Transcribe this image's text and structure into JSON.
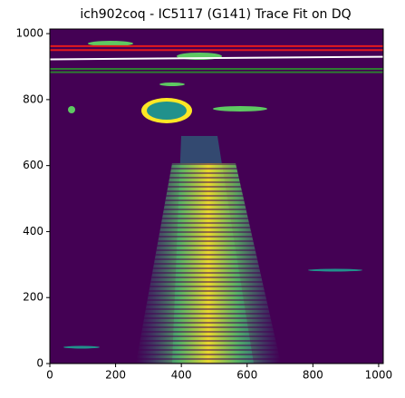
{
  "chart_data": {
    "type": "image",
    "title": "ich902coq - IC5117 (G141) Trace Fit on DQ",
    "xlim": [
      0,
      1014
    ],
    "ylim": [
      0,
      1014
    ],
    "xticks": [
      0,
      200,
      400,
      600,
      800,
      1000
    ],
    "yticks": [
      0,
      200,
      400,
      600,
      800,
      1000
    ],
    "background": "#440154",
    "series": [
      {
        "color": "#e41a1c",
        "x": [
          0,
          1014
        ],
        "values": [
          962,
          962
        ]
      },
      {
        "color": "#e41a1c",
        "x": [
          0,
          1014
        ],
        "values": [
          950,
          950
        ]
      },
      {
        "color": "#ffffff",
        "x": [
          0,
          1014
        ],
        "values": [
          922,
          930
        ]
      },
      {
        "color": "#2e7d32",
        "x": [
          0,
          1014
        ],
        "values": [
          893,
          893
        ]
      },
      {
        "color": "#2e7d32",
        "x": [
          0,
          1014
        ],
        "values": [
          883,
          883
        ]
      }
    ]
  }
}
